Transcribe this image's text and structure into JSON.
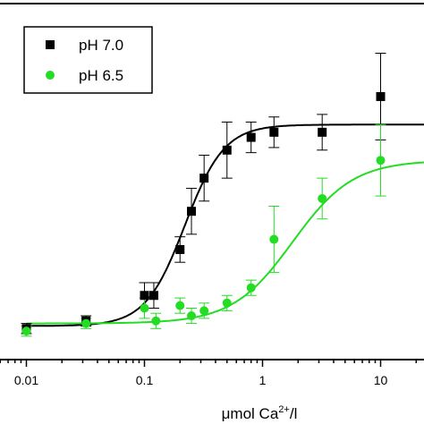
{
  "chart_data": {
    "type": "scatter",
    "x_scale": "log",
    "x_ticks": [
      0.01,
      0.1,
      1,
      10
    ],
    "x_tick_labels": [
      "0.01",
      "0.1",
      "1",
      "10"
    ],
    "xlim": [
      0.0063,
      25
    ],
    "ylim": [
      -0.05,
      1.2
    ],
    "xlabel": {
      "main": "μmol  Ca",
      "sup": "2+",
      "tail": "/l"
    },
    "legend": {
      "placement": "top-left"
    },
    "series": [
      {
        "name": "pH 7.0",
        "color": "#000000",
        "marker": "square",
        "points": [
          {
            "x": 0.01,
            "y": 0.02,
            "err": 0.02
          },
          {
            "x": 0.032,
            "y": 0.05,
            "err": 0.02
          },
          {
            "x": 0.1,
            "y": 0.15,
            "err": 0.05
          },
          {
            "x": 0.12,
            "y": 0.15,
            "err": 0.05
          },
          {
            "x": 0.2,
            "y": 0.33,
            "err": 0.05
          },
          {
            "x": 0.25,
            "y": 0.48,
            "err": 0.09
          },
          {
            "x": 0.32,
            "y": 0.61,
            "err": 0.09
          },
          {
            "x": 0.5,
            "y": 0.72,
            "err": 0.11
          },
          {
            "x": 0.8,
            "y": 0.77,
            "err": 0.06
          },
          {
            "x": 1.25,
            "y": 0.79,
            "err": 0.06
          },
          {
            "x": 3.2,
            "y": 0.79,
            "err": 0.07
          },
          {
            "x": 10.0,
            "y": 0.93,
            "err": 0.17
          }
        ],
        "curve": {
          "bottom": 0.03,
          "top": 0.82,
          "ec50": 0.22,
          "hill": 2.6
        }
      },
      {
        "name": "pH 6.5",
        "color": "#22dd22",
        "marker": "circle",
        "points": [
          {
            "x": 0.01,
            "y": 0.01,
            "err": 0.02
          },
          {
            "x": 0.032,
            "y": 0.04,
            "err": 0.02
          },
          {
            "x": 0.1,
            "y": 0.1,
            "err": 0.04
          },
          {
            "x": 0.125,
            "y": 0.05,
            "err": 0.03
          },
          {
            "x": 0.2,
            "y": 0.11,
            "err": 0.03
          },
          {
            "x": 0.25,
            "y": 0.07,
            "err": 0.03
          },
          {
            "x": 0.32,
            "y": 0.09,
            "err": 0.03
          },
          {
            "x": 0.5,
            "y": 0.12,
            "err": 0.03
          },
          {
            "x": 0.8,
            "y": 0.18,
            "err": 0.03
          },
          {
            "x": 1.25,
            "y": 0.37,
            "err": 0.13
          },
          {
            "x": 3.2,
            "y": 0.53,
            "err": 0.08
          },
          {
            "x": 10.0,
            "y": 0.68,
            "err": 0.14
          }
        ],
        "curve": {
          "bottom": 0.04,
          "top": 0.68,
          "ec50": 1.8,
          "hill": 1.7
        }
      }
    ]
  }
}
